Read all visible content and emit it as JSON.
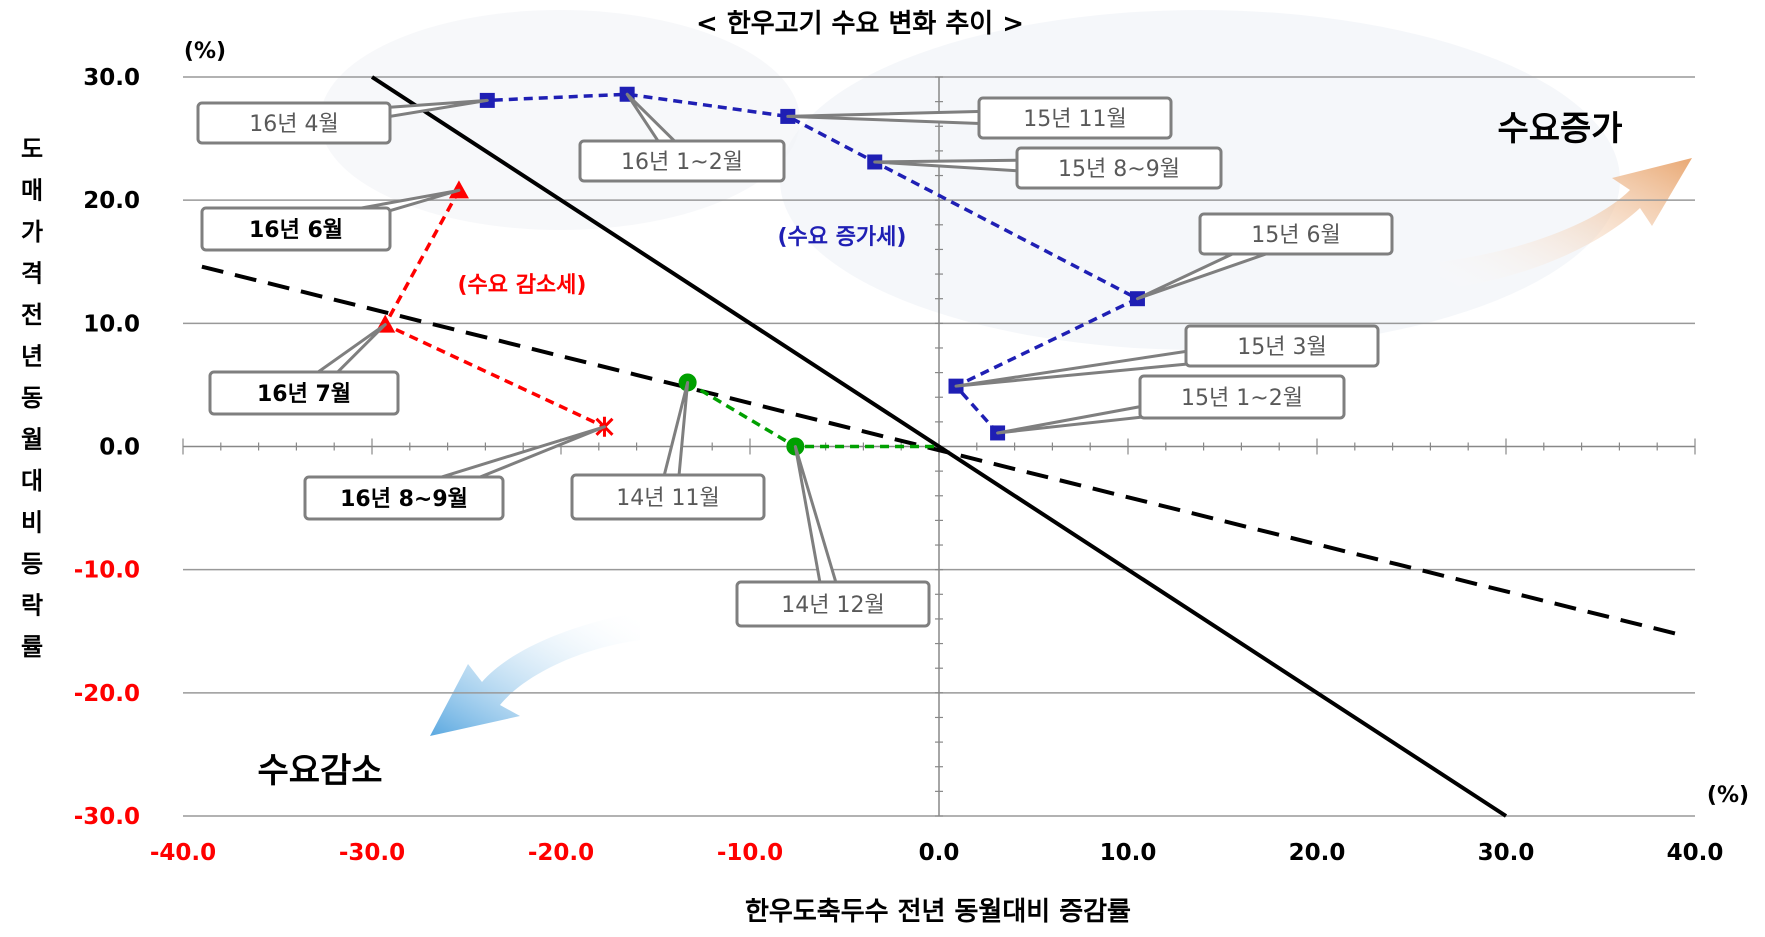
{
  "chart_data": {
    "type": "scatter",
    "title": "< 한우고기 수요 변화 추이 >",
    "xlabel": "한우도축두수 전년 동월대비 증감률",
    "ylabel": "도매가격전년동월대비등락률",
    "x_unit": "(%)",
    "y_unit": "(%)",
    "xlim": [
      -40,
      40
    ],
    "ylim": [
      -30,
      30
    ],
    "x_ticks": [
      "-40.0",
      "-30.0",
      "-20.0",
      "-10.0",
      "0.0",
      "10.0",
      "20.0",
      "30.0",
      "40.0"
    ],
    "y_ticks": [
      "30.0",
      "20.0",
      "10.0",
      "0.0",
      "-10.0",
      "-20.0",
      "-30.0"
    ],
    "grid": true,
    "series": [
      {
        "color": "#00a000",
        "marker": "circle",
        "points": [
          {
            "label": "14년 11월",
            "x": -13.3,
            "y": 5.2
          },
          {
            "label": "14년 12월",
            "x": -7.6,
            "y": 0.0
          },
          {
            "label": "",
            "x": 0.0,
            "y": 0.0
          }
        ]
      },
      {
        "color": "#1f1fb4",
        "marker": "square",
        "points": [
          {
            "label": "15년 1~2월",
            "x": 3.1,
            "y": 1.1
          },
          {
            "label": "15년 3월",
            "x": 0.9,
            "y": 4.9
          },
          {
            "label": "15년 6월",
            "x": 10.5,
            "y": 12.0
          },
          {
            "label": "15년 8~9월",
            "x": -3.4,
            "y": 23.1
          },
          {
            "label": "15년 11월",
            "x": -8.0,
            "y": 26.8
          },
          {
            "label": "16년 1~2월",
            "x": -16.5,
            "y": 28.6
          },
          {
            "label": "16년 4월",
            "x": -23.9,
            "y": 28.1
          }
        ]
      },
      {
        "color": "#ff0000",
        "marker": "triangle",
        "points": [
          {
            "label": "16년 6월",
            "x": -25.4,
            "y": 20.8
          },
          {
            "label": "16년 7월",
            "x": -29.3,
            "y": 9.9
          },
          {
            "label": "16년 8~9월",
            "x": -17.7,
            "y": 1.6
          }
        ]
      }
    ],
    "reference_lines": [
      {
        "style": "solid",
        "x1": -30,
        "y1": 30,
        "x2": 30,
        "y2": -30
      },
      {
        "style": "dashed",
        "x1": -39,
        "y1": 14.6,
        "x2": 39,
        "y2": -15.2
      }
    ],
    "annotations": [
      {
        "text": "(수요 증가세)",
        "color": "#1f1fb4"
      },
      {
        "text": "(수요 감소세)",
        "color": "#ff0000"
      },
      {
        "text": "수요증가",
        "color": "#000000"
      },
      {
        "text": "수요감소",
        "color": "#000000"
      }
    ]
  }
}
